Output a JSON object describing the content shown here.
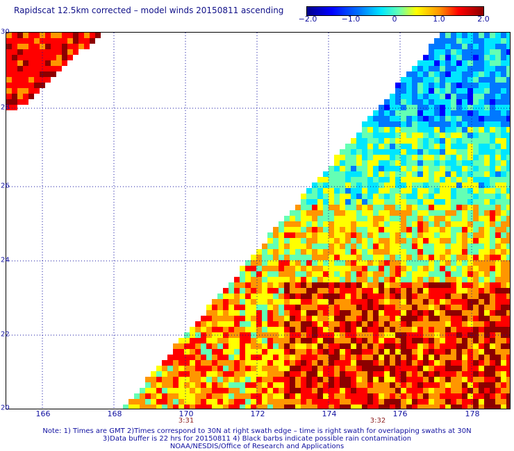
{
  "title": "Rapidscat 12.5km corrected – model winds 20150811 ascending",
  "colorbar": {
    "labels": [
      "−2.0",
      "−1.0",
      "0",
      "1.0",
      "2.0"
    ],
    "min": -2.0,
    "max": 2.0
  },
  "axes": {
    "lat_labels": [
      "30",
      "28",
      "26",
      "24",
      "22",
      "20"
    ],
    "lon_labels": [
      "166",
      "168",
      "170",
      "172",
      "174",
      "176",
      "178"
    ],
    "lat_range": [
      20,
      30
    ],
    "lon_range": [
      164.8,
      179.0
    ],
    "grid": "dotted"
  },
  "swath_times": [
    "3:31",
    "3:32"
  ],
  "notes": {
    "line1": "Note: 1) Times are GMT 2)Times correspond to 30N at right swath edge – time is right swath for overlapping swaths at 30N",
    "line2": "3)Data buffer is 22 hrs for 20150811 4) Black barbs indicate possible rain contamination",
    "line3": "NOAA/NESDIS/Office of Research and Applications"
  },
  "colors": {
    "scale": [
      "#00008c",
      "#0000ff",
      "#0078ff",
      "#00e6ff",
      "#64ffb4",
      "#ffff00",
      "#ff9600",
      "#ff0000",
      "#8c0000"
    ],
    "grid": "#1010a0"
  }
}
